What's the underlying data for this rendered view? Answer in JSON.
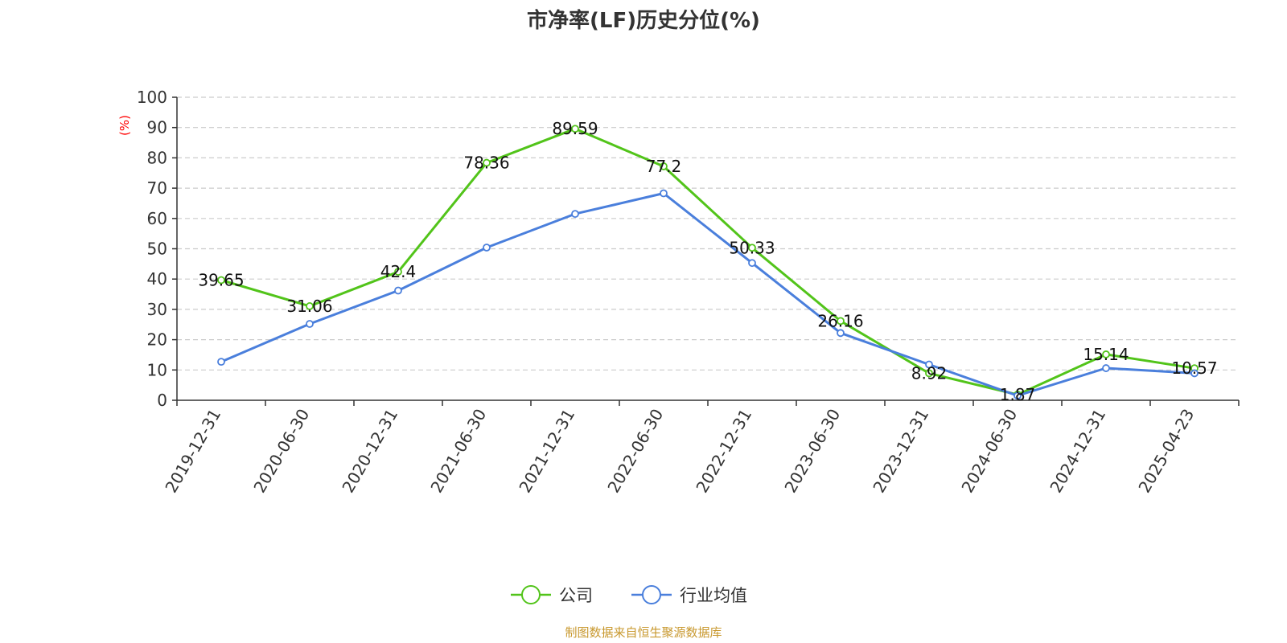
{
  "chart_data": {
    "type": "line",
    "title": "市净率(LF)历史分位(%)",
    "ylabel": "(%)",
    "ylim": [
      0,
      100
    ],
    "yticks": [
      0,
      10,
      20,
      30,
      40,
      50,
      60,
      70,
      80,
      90,
      100
    ],
    "grid": true,
    "legend_position": "bottom-center",
    "categories": [
      "2019-12-31",
      "2020-06-30",
      "2020-12-31",
      "2021-06-30",
      "2021-12-31",
      "2022-06-30",
      "2022-12-31",
      "2023-06-30",
      "2023-12-31",
      "2024-06-30",
      "2024-12-31",
      "2025-04-23"
    ],
    "series": [
      {
        "name": "公司",
        "color": "#52c41a",
        "values": [
          39.65,
          31.06,
          42.4,
          78.36,
          89.59,
          77.2,
          50.33,
          26.16,
          8.92,
          1.87,
          15.14,
          10.57
        ],
        "labels": [
          "39.65",
          "31.06",
          "42.4",
          "78.36",
          "89.59",
          "77.2",
          "50.33",
          "26.16",
          "8.92",
          "1.87",
          "15.14",
          "10.57"
        ]
      },
      {
        "name": "行业均值",
        "color": "#4a7fdc",
        "values": [
          12.7,
          25.2,
          36.2,
          50.4,
          61.5,
          68.3,
          45.3,
          22.2,
          11.8,
          1.5,
          10.6,
          8.9
        ]
      }
    ]
  },
  "source_text": "制图数据来自恒生聚源数据库",
  "colors": {
    "ylabel": "#ff0000",
    "source": "#c8982e",
    "grid": "#cccccc",
    "axis": "#333333"
  }
}
